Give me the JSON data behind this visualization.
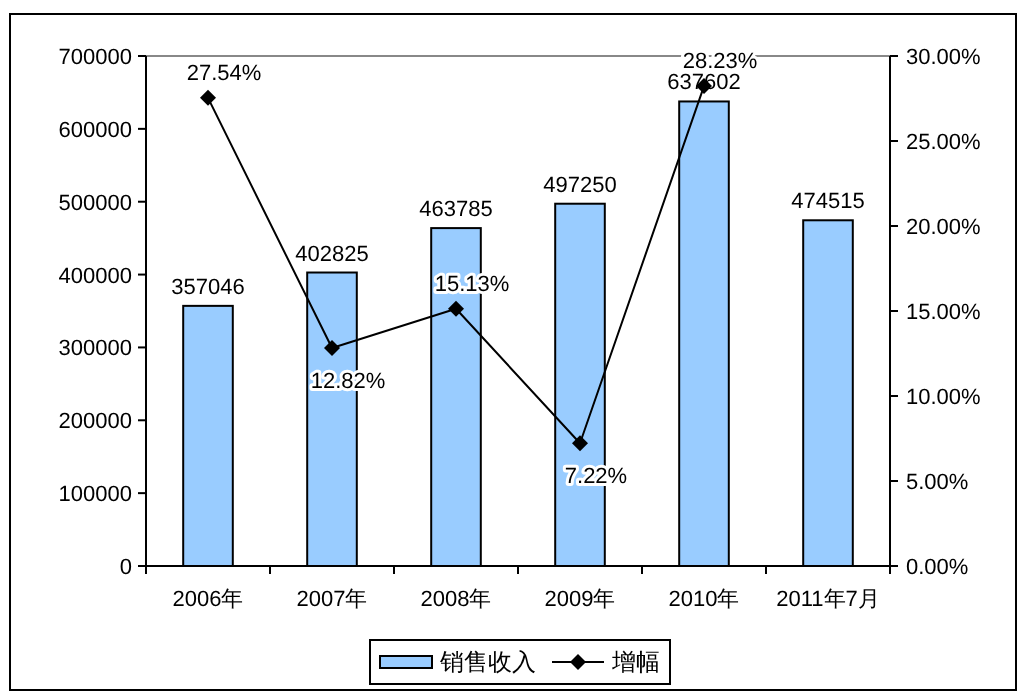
{
  "chart_data": {
    "type": "bar",
    "categories": [
      "2006年",
      "2007年",
      "2008年",
      "2009年",
      "2010年",
      "2011年7月"
    ],
    "series": [
      {
        "name": "销售收入",
        "color": "#99ccff",
        "values": [
          357046,
          402825,
          463785,
          497250,
          637602,
          474515
        ],
        "value_labels": [
          "357046",
          "402825",
          "463785",
          "497250",
          "637602",
          "474515"
        ]
      },
      {
        "name": "增幅",
        "type": "line",
        "axis": "y2",
        "color": "#000000",
        "marker": "diamond",
        "values": [
          27.54,
          12.82,
          15.13,
          7.22,
          28.23,
          null
        ],
        "value_labels": [
          "27.54%",
          "12.82%",
          "15.13%",
          "7.22%",
          "28.23%",
          null
        ]
      }
    ],
    "ylim": [
      0,
      700000
    ],
    "yticks": [
      0,
      100000,
      200000,
      300000,
      400000,
      500000,
      600000,
      700000
    ],
    "y2lim": [
      0,
      30
    ],
    "y2ticks": [
      {
        "value": 0,
        "label": "0.00%"
      },
      {
        "value": 5,
        "label": "5.00%"
      },
      {
        "value": 10,
        "label": "10.00%"
      },
      {
        "value": 15,
        "label": "15.00%"
      },
      {
        "value": 20,
        "label": "20.00%"
      },
      {
        "value": 25,
        "label": "25.00%"
      },
      {
        "value": 30,
        "label": "30.00%"
      }
    ],
    "legend": "bottom",
    "grid": false
  }
}
